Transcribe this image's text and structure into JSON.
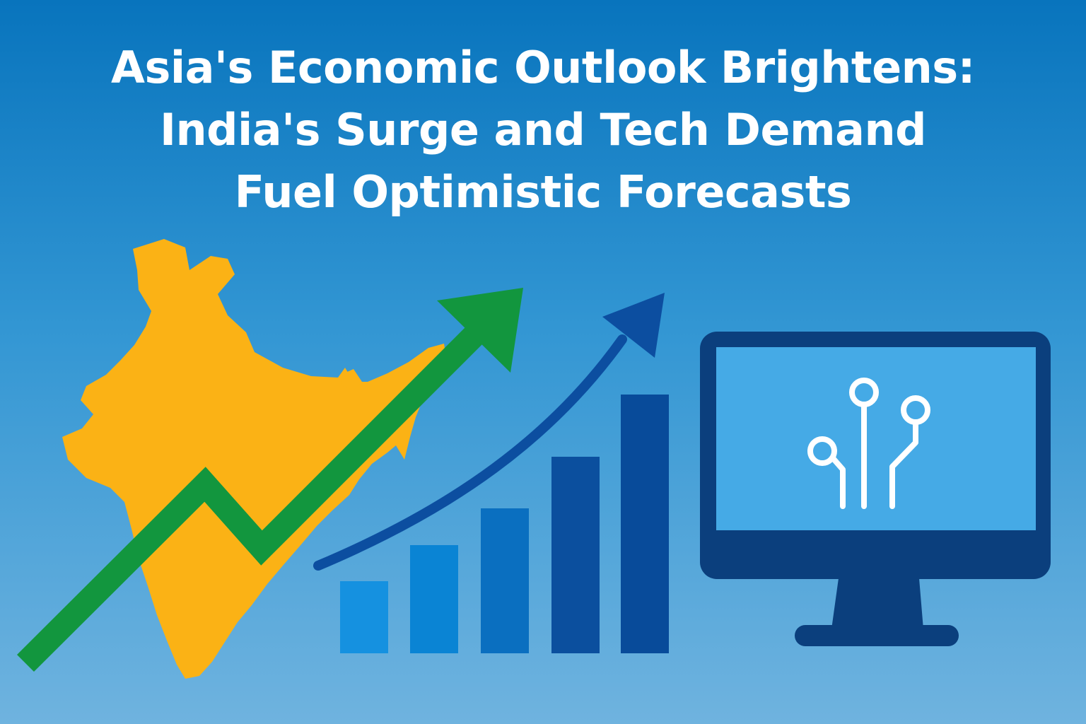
{
  "headline": {
    "line1": "Asia's Economic Outlook Brightens:",
    "line2": "India's Surge and Tech Demand",
    "line3": "Fuel Optimistic Forecasts"
  },
  "illustration": {
    "map": "india-map-icon",
    "trend_arrows": [
      "green-zigzag-arrow-icon",
      "blue-curved-arrow-icon"
    ],
    "monitor_icon": "circuit-monitor-icon",
    "bar_chart": {
      "bar_count": 5,
      "relative_heights": [
        0.31,
        0.44,
        0.57,
        0.73,
        0.95
      ],
      "colors": [
        "#1591e0",
        "#0a84d4",
        "#0a6fc0",
        "#0b4f9e",
        "#084b9a"
      ]
    }
  },
  "colors": {
    "background_top": "#0874bd",
    "background_bottom": "#6fb3df",
    "map": "#fbb215",
    "green_arrow": "#12963e",
    "blue_arrow": "#0c4ea0",
    "monitor_frame": "#0b3f7d",
    "monitor_screen": "#45aae6",
    "text": "#ffffff"
  }
}
